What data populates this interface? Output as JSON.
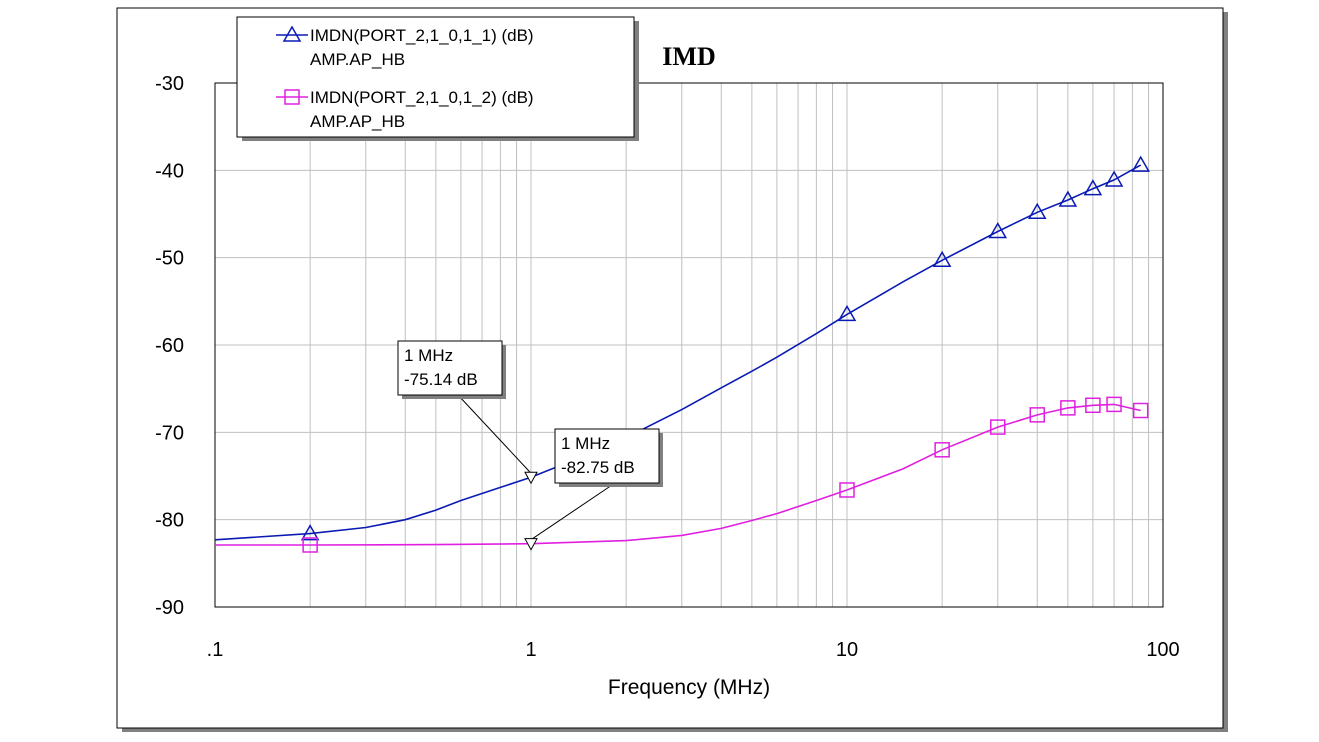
{
  "chart_data": {
    "type": "line",
    "title": "IMD",
    "xlabel": "Frequency (MHz)",
    "ylabel": "",
    "x_scale": "log",
    "xlim": [
      0.1,
      100
    ],
    "ylim": [
      -90,
      -30
    ],
    "x_ticks": [
      {
        "value": 0.1,
        "label": ".1"
      },
      {
        "value": 1,
        "label": "1"
      },
      {
        "value": 10,
        "label": "10"
      },
      {
        "value": 100,
        "label": "100"
      }
    ],
    "y_ticks": [
      {
        "value": -30,
        "label": "-30"
      },
      {
        "value": -40,
        "label": "-40"
      },
      {
        "value": -50,
        "label": "-50"
      },
      {
        "value": -60,
        "label": "-60"
      },
      {
        "value": -70,
        "label": "-70"
      },
      {
        "value": -80,
        "label": "-80"
      },
      {
        "value": -90,
        "label": "-90"
      }
    ],
    "grid": true,
    "legend_position": "top-left",
    "series": [
      {
        "name": "IMDN(PORT_2,1_0,1_1) (dB)",
        "source": "AMP.AP_HB",
        "color": "#0a1ab4",
        "marker": "triangle",
        "points": [
          [
            0.1,
            -82.3
          ],
          [
            0.2,
            -81.6
          ],
          [
            0.3,
            -80.9
          ],
          [
            0.4,
            -80.0
          ],
          [
            0.5,
            -78.9
          ],
          [
            0.6,
            -77.8
          ],
          [
            0.8,
            -76.3
          ],
          [
            1,
            -75.14
          ],
          [
            1.5,
            -72.6
          ],
          [
            2,
            -70.6
          ],
          [
            3,
            -67.4
          ],
          [
            4,
            -64.9
          ],
          [
            5,
            -63.0
          ],
          [
            6,
            -61.4
          ],
          [
            8,
            -58.7
          ],
          [
            10,
            -56.5
          ],
          [
            15,
            -52.8
          ],
          [
            20,
            -50.3
          ],
          [
            30,
            -47.0
          ],
          [
            40,
            -44.8
          ],
          [
            50,
            -43.4
          ],
          [
            60,
            -42.1
          ],
          [
            70,
            -41.1
          ],
          [
            85,
            -39.4
          ]
        ],
        "markers_at": [
          0.2,
          10,
          20,
          30,
          40,
          50,
          60,
          70,
          85
        ]
      },
      {
        "name": "IMDN(PORT_2,1_0,1_2) (dB)",
        "source": "AMP.AP_HB",
        "color": "#e020e0",
        "marker": "square",
        "points": [
          [
            0.1,
            -82.9
          ],
          [
            0.2,
            -82.9
          ],
          [
            0.5,
            -82.85
          ],
          [
            1,
            -82.75
          ],
          [
            2,
            -82.4
          ],
          [
            3,
            -81.8
          ],
          [
            4,
            -81.0
          ],
          [
            5,
            -80.1
          ],
          [
            6,
            -79.3
          ],
          [
            8,
            -77.8
          ],
          [
            10,
            -76.6
          ],
          [
            15,
            -74.2
          ],
          [
            20,
            -72.0
          ],
          [
            30,
            -69.4
          ],
          [
            40,
            -68.0
          ],
          [
            50,
            -67.2
          ],
          [
            60,
            -66.9
          ],
          [
            70,
            -66.8
          ],
          [
            85,
            -67.5
          ]
        ],
        "markers_at": [
          0.2,
          10,
          20,
          30,
          40,
          50,
          60,
          70,
          85
        ]
      }
    ],
    "annotations": [
      {
        "series": 0,
        "x": 1,
        "y": -75.14,
        "line1": "1 MHz",
        "line2": "-75.14 dB"
      },
      {
        "series": 1,
        "x": 1,
        "y": -82.75,
        "line1": "1 MHz",
        "line2": "-82.75 dB"
      }
    ]
  }
}
